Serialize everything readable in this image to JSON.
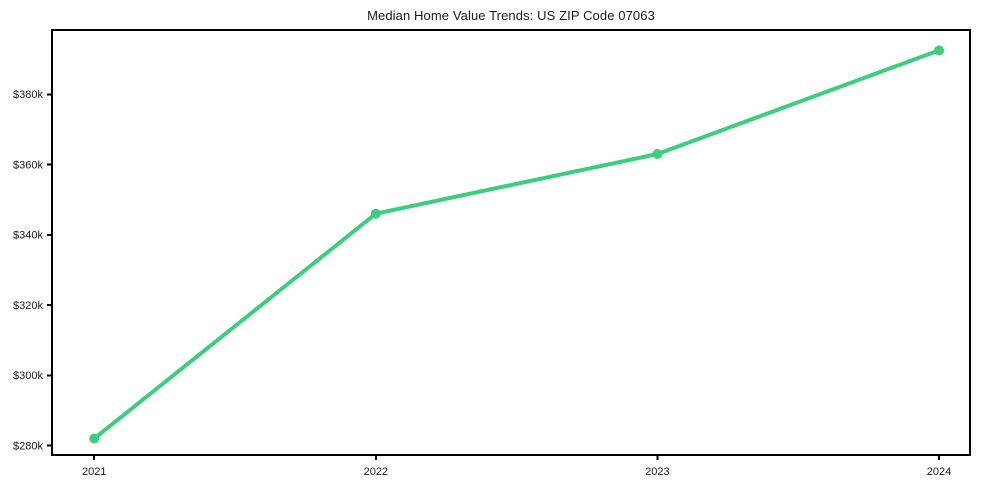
{
  "chart_data": {
    "type": "line",
    "title": "Median Home Value Trends: US ZIP Code 07063",
    "x": [
      2021,
      2022,
      2023,
      2024
    ],
    "x_tick_labels": [
      "2021",
      "2022",
      "2023",
      "2024"
    ],
    "values": [
      282000,
      346000,
      363000,
      392500
    ],
    "y_ticks": [
      280000,
      300000,
      320000,
      340000,
      360000,
      380000
    ],
    "y_tick_labels": [
      "$280k",
      "$300k",
      "$320k",
      "$340k",
      "$360k",
      "$380k"
    ],
    "xlabel": "",
    "ylabel": "",
    "xlim": [
      2020.85,
      2024.11
    ],
    "ylim": [
      277300,
      398300
    ],
    "grid": false,
    "legend": "none"
  },
  "colors": {
    "line": "#3bcf7d",
    "marker": "#3bcf7d",
    "axis": "#000000",
    "tick_text": "#1a1a1a",
    "background": "#ffffff"
  }
}
